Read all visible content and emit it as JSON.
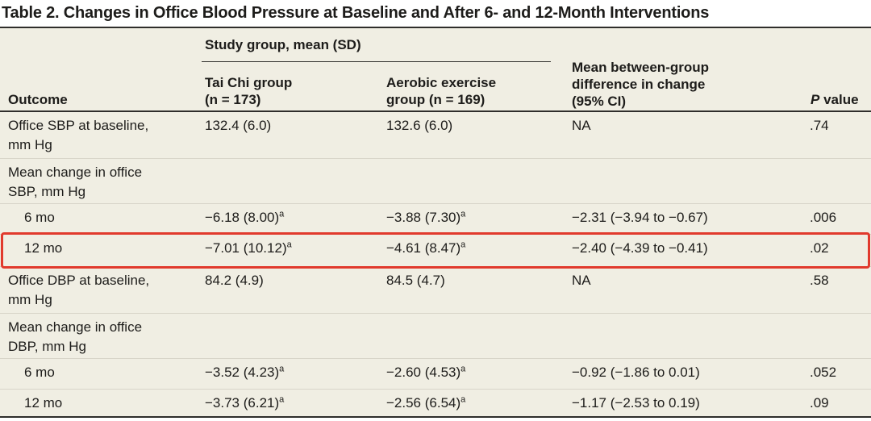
{
  "title": "Table 2. Changes in Office Blood Pressure at Baseline and After 6- and 12-Month Interventions",
  "colors": {
    "table_background": "#f0eee3",
    "dark_rule": "#2f2e2b",
    "row_divider": "#d8d5c9",
    "highlight_red": "#e13a2d"
  },
  "header": {
    "group": "Study group, mean (SD)",
    "outcome": "Outcome",
    "tai_chi": "Tai Chi group\n(n = 173)",
    "aerobic": "Aerobic exercise\ngroup (n = 169)",
    "diff": "Mean between-group\ndifference in change\n(95% CI)",
    "p_italic": "P",
    "p_rest": " value"
  },
  "footnote_marker": "a",
  "annotation": {
    "highlighted_row": "12 mo (Mean change in office SBP)",
    "color": "#e13a2d"
  },
  "rows": [
    {
      "outcome": "Office SBP at baseline,\nmm Hg",
      "tai_chi": {
        "v": "132.4 (6.0)"
      },
      "aerobic": {
        "v": "132.6 (6.0)"
      },
      "diff": "NA",
      "p": ".74"
    },
    {
      "outcome": "Mean change in office\nSBP, mm Hg",
      "tai_chi": {
        "v": ""
      },
      "aerobic": {
        "v": ""
      },
      "diff": "",
      "p": ""
    },
    {
      "outcome": "6 mo",
      "tai_chi": {
        "v": "−6.18 (8.00)",
        "s": "a"
      },
      "aerobic": {
        "v": "−3.88 (7.30)",
        "s": "a"
      },
      "diff": "−2.31 (−3.94 to −0.67)",
      "p": ".006"
    },
    {
      "outcome": "12 mo",
      "tai_chi": {
        "v": "−7.01 (10.12)",
        "s": "a"
      },
      "aerobic": {
        "v": "−4.61 (8.47)",
        "s": "a"
      },
      "diff": "−2.40 (−4.39 to −0.41)",
      "p": ".02"
    },
    {
      "outcome": "Office DBP at baseline,\nmm Hg",
      "tai_chi": {
        "v": "84.2 (4.9)"
      },
      "aerobic": {
        "v": "84.5 (4.7)"
      },
      "diff": "NA",
      "p": ".58"
    },
    {
      "outcome": "Mean change in office\nDBP, mm Hg",
      "tai_chi": {
        "v": ""
      },
      "aerobic": {
        "v": ""
      },
      "diff": "",
      "p": ""
    },
    {
      "outcome": "6 mo",
      "tai_chi": {
        "v": "−3.52 (4.23)",
        "s": "a"
      },
      "aerobic": {
        "v": "−2.60 (4.53)",
        "s": "a"
      },
      "diff": "−0.92 (−1.86 to 0.01)",
      "p": ".052"
    },
    {
      "outcome": "12 mo",
      "tai_chi": {
        "v": "−3.73 (6.21)",
        "s": "a"
      },
      "aerobic": {
        "v": "−2.56 (6.54)",
        "s": "a"
      },
      "diff": "−1.17 (−2.53 to 0.19)",
      "p": ".09"
    }
  ]
}
